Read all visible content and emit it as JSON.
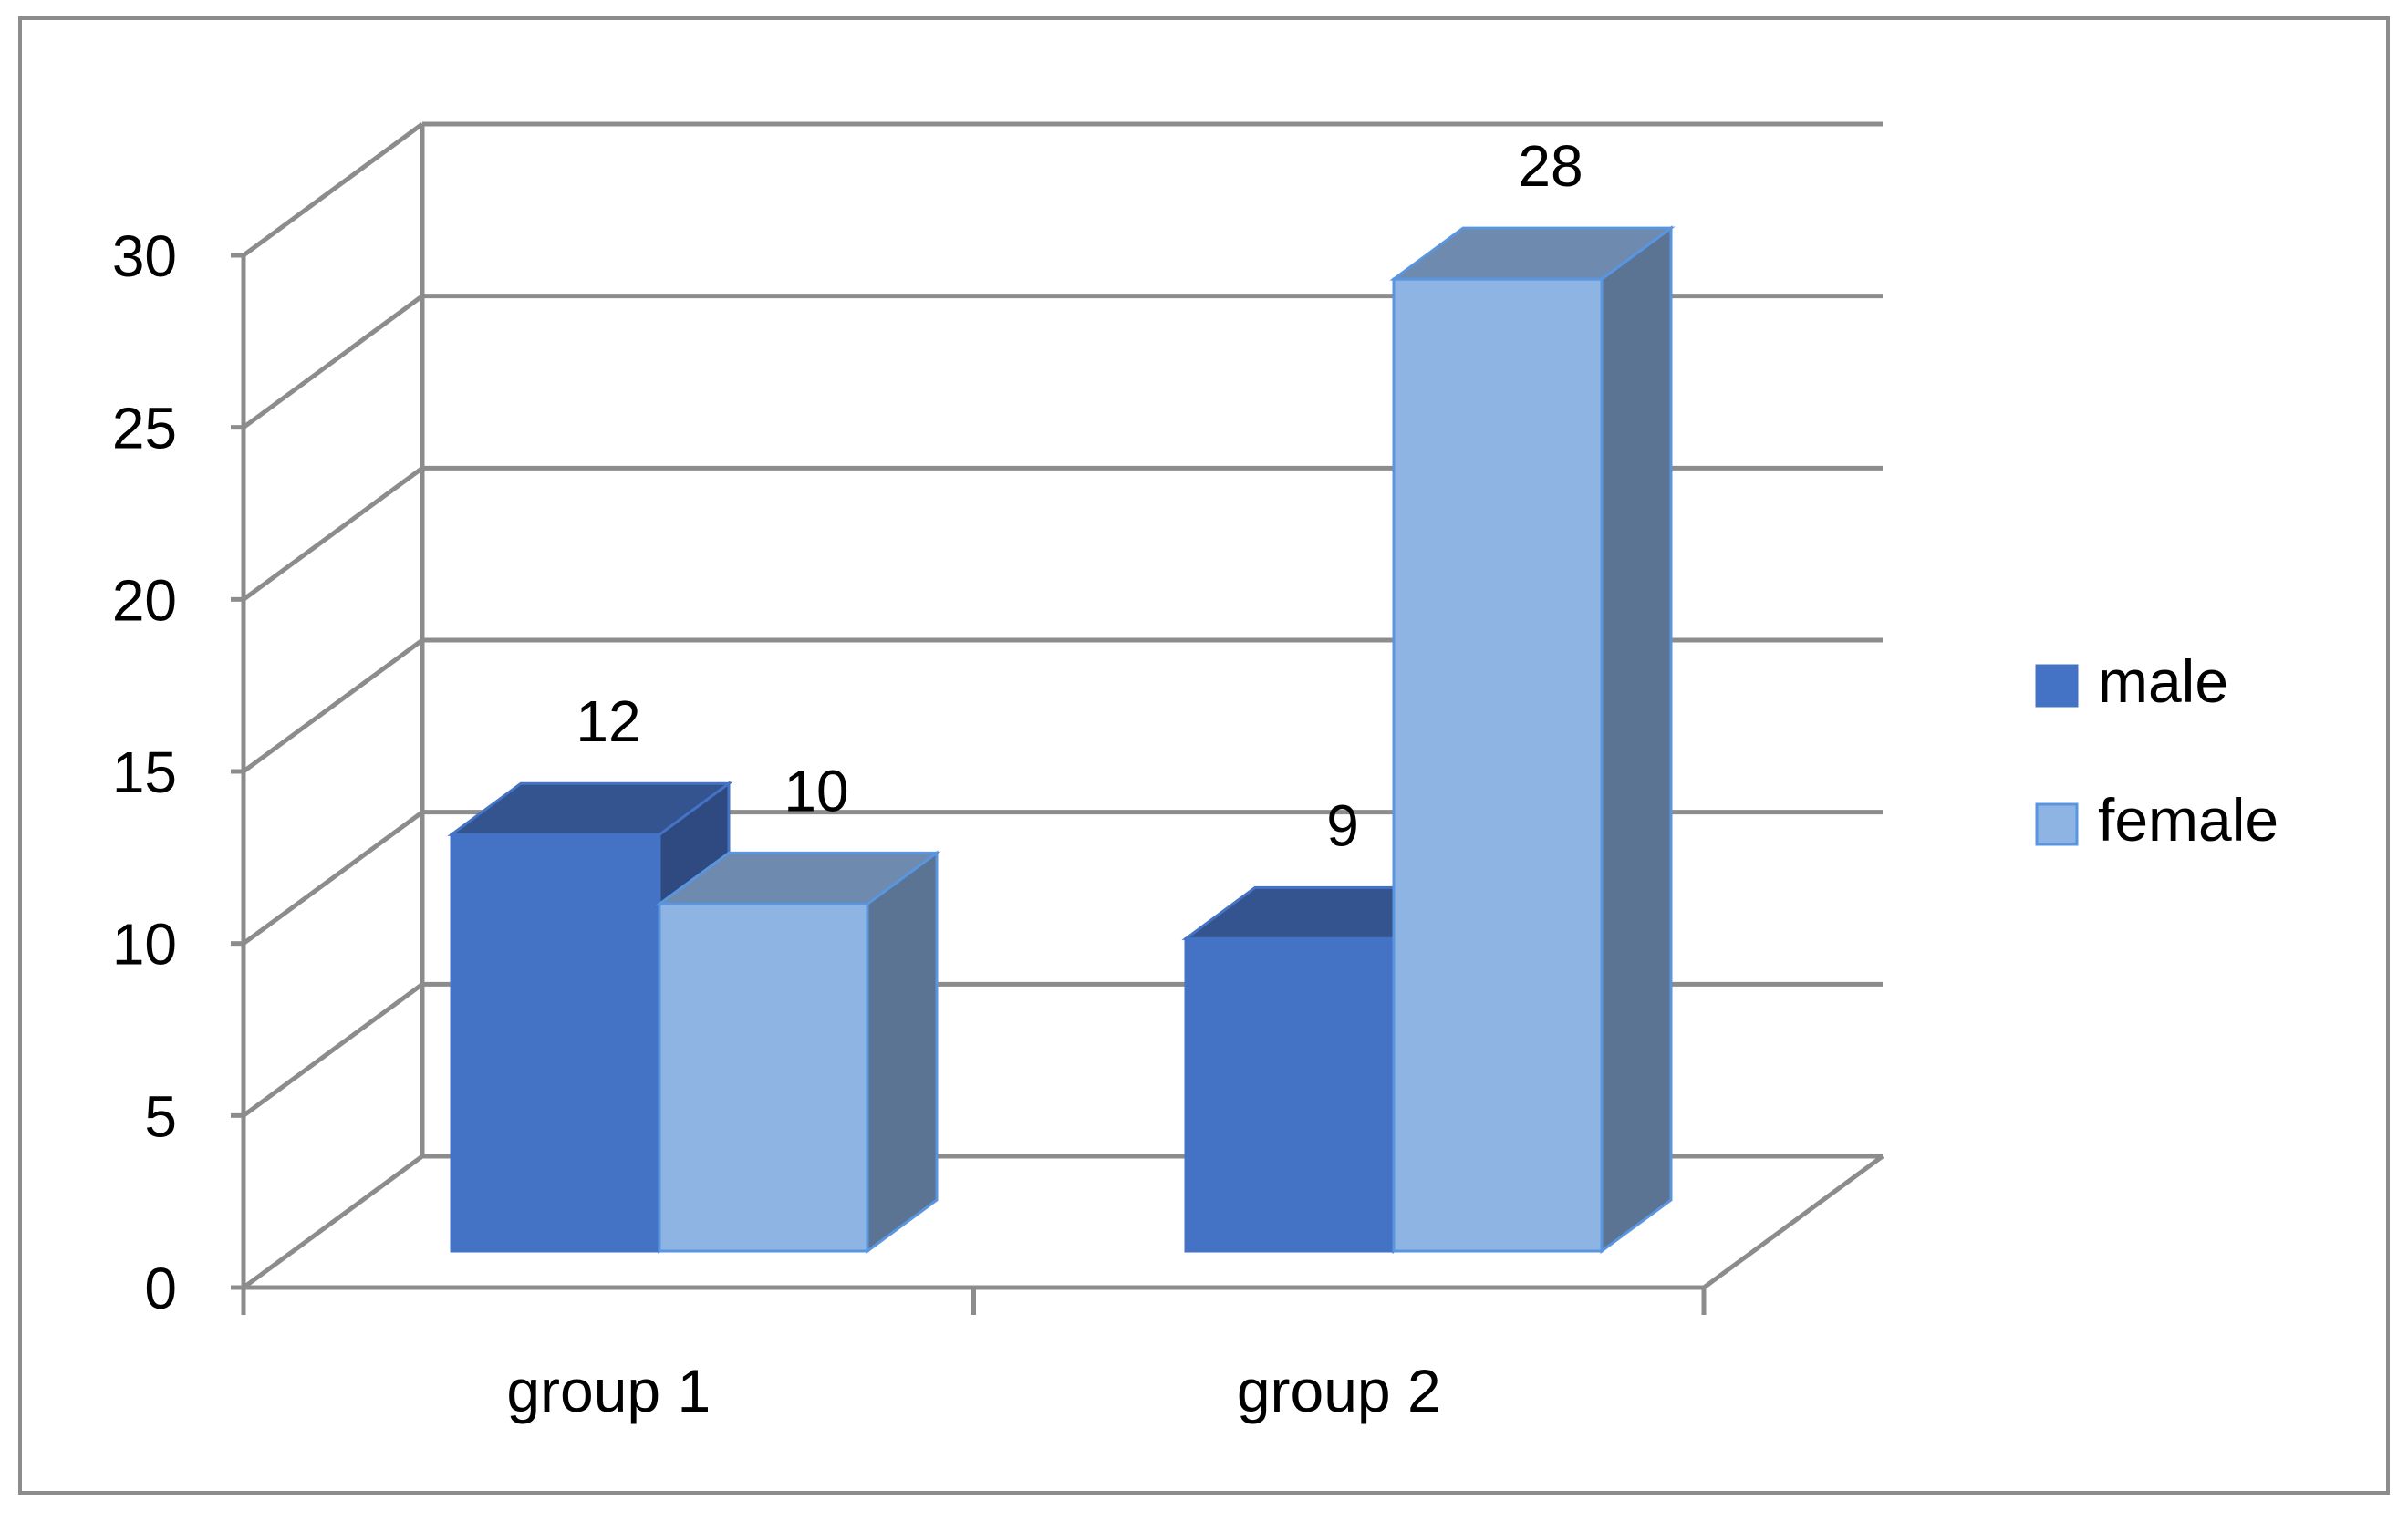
{
  "chart_data": {
    "type": "bar",
    "style": "3d-clustered-column",
    "title": "",
    "xlabel": "",
    "ylabel": "",
    "categories": [
      "group 1",
      "group 2"
    ],
    "series": [
      {
        "name": "male",
        "values": [
          12,
          9
        ],
        "color": "#4472C4",
        "top_color": "#34548F",
        "side_color": "#2E4A80"
      },
      {
        "name": "female",
        "values": [
          10,
          28
        ],
        "color": "#8DB4E2",
        "top_color": "#6E8BAF",
        "side_color": "#5B7493",
        "edge_color": "#5A95E0"
      }
    ],
    "data_labels": true,
    "ylim": [
      0,
      30
    ],
    "ytick_step": 5,
    "y_ticks": [
      "0",
      "5",
      "10",
      "15",
      "20",
      "25",
      "30"
    ],
    "grid": true,
    "grid_color": "#8C8C8C",
    "legend_position": "right",
    "frame_color": "#8C8C8C"
  }
}
